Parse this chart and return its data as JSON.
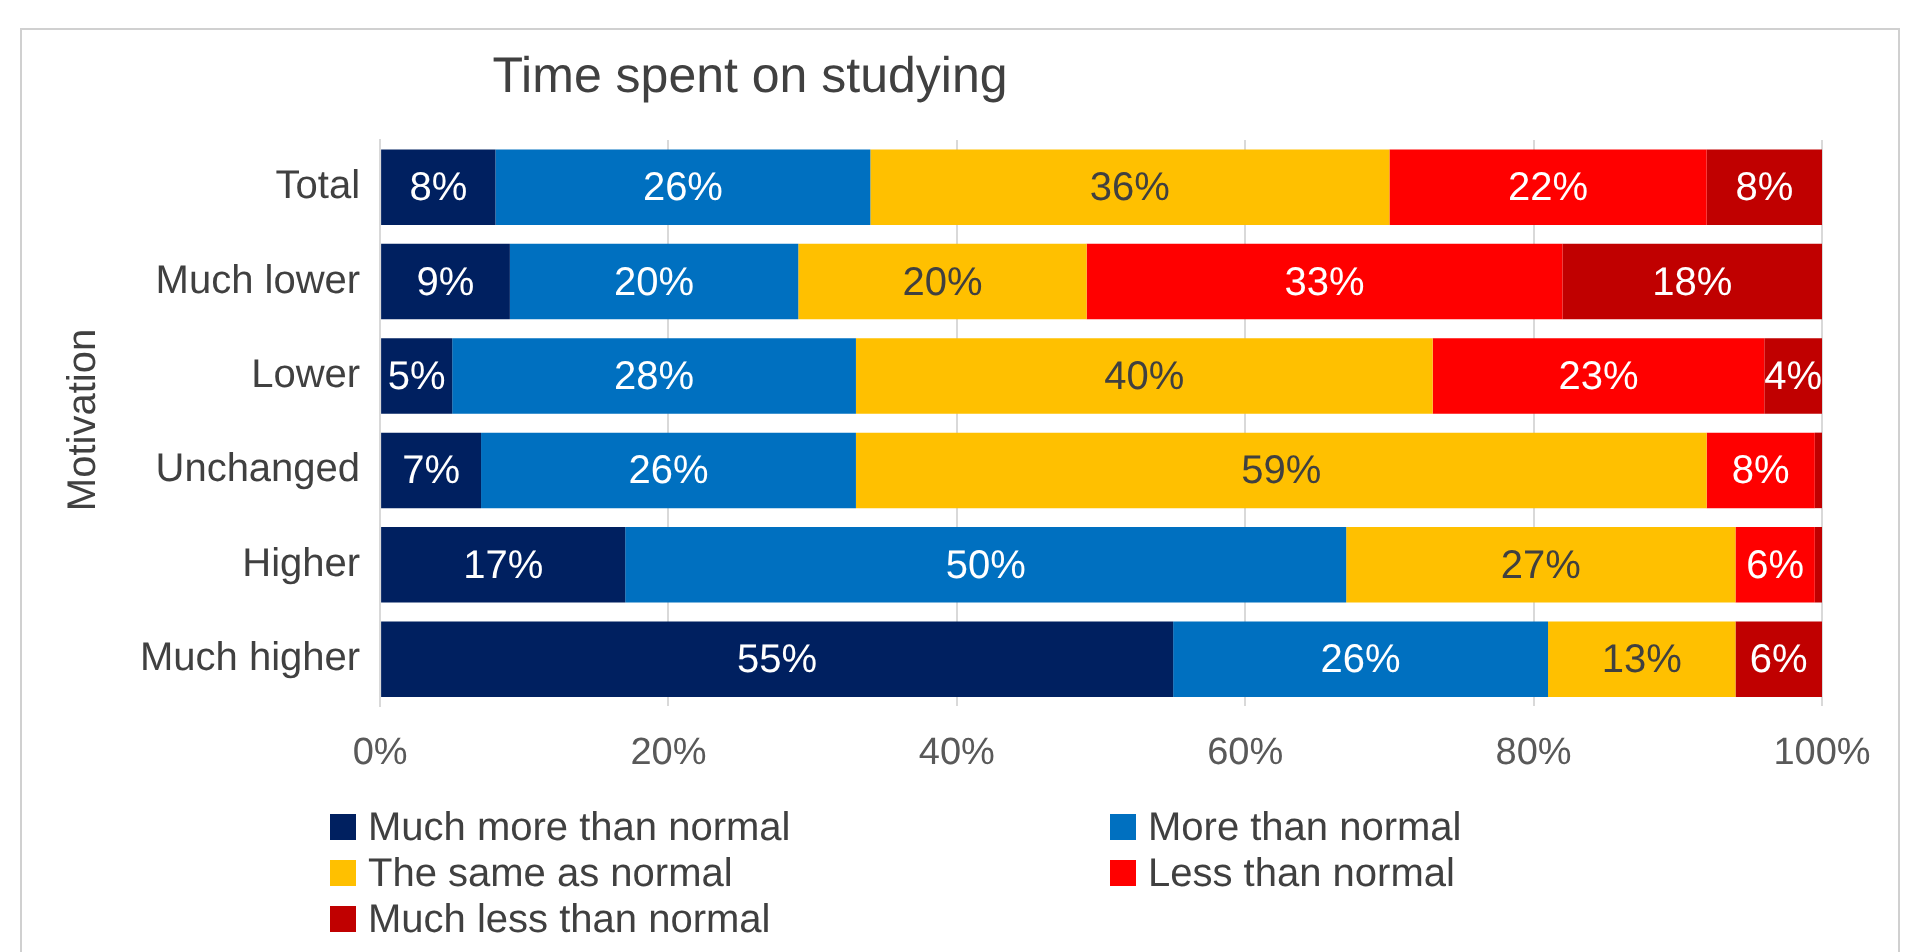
{
  "chart_data": {
    "type": "bar",
    "orientation": "horizontal",
    "stacked": true,
    "title": "Time spent on studying",
    "ylabel": "Motivation",
    "categories": [
      "Total",
      "Much lower",
      "Lower",
      "Unchanged",
      "Higher",
      "Much higher"
    ],
    "series": [
      {
        "name": "Much more than normal",
        "color": "#002060",
        "values": [
          8,
          9,
          5,
          7,
          17,
          55
        ],
        "value_labels": [
          "8%",
          "9%",
          "5%",
          "7%",
          "17%",
          "55%"
        ]
      },
      {
        "name": "More than normal",
        "color": "#0070c0",
        "values": [
          26,
          20,
          28,
          26,
          50,
          26
        ],
        "value_labels": [
          "26%",
          "20%",
          "28%",
          "26%",
          "50%",
          "26%"
        ]
      },
      {
        "name": "The same as normal",
        "color": "#ffc000",
        "values": [
          36,
          20,
          40,
          59,
          27,
          13
        ],
        "value_labels": [
          "36%",
          "20%",
          "40%",
          "59%",
          "27%",
          "13%"
        ]
      },
      {
        "name": "Less than normal",
        "color": "#ff0000",
        "values": [
          22,
          33,
          23,
          7.5,
          5.5,
          null
        ],
        "value_labels": [
          "22%",
          "33%",
          "23%",
          "8%",
          "6%",
          null
        ]
      },
      {
        "name": "Much less than normal",
        "color": "#c00000",
        "values": [
          8,
          18,
          4,
          0.5,
          0.5,
          6
        ],
        "value_labels": [
          "8%",
          "18%",
          "4%",
          null,
          null,
          "6%"
        ]
      }
    ],
    "xlim": [
      0,
      100
    ],
    "xticks": [
      {
        "value": 0,
        "label": "0%"
      },
      {
        "value": 20,
        "label": "20%"
      },
      {
        "value": 40,
        "label": "40%"
      },
      {
        "value": 60,
        "label": "60%"
      },
      {
        "value": 80,
        "label": "80%"
      },
      {
        "value": 100,
        "label": "100%"
      }
    ],
    "grid": "x",
    "legend": "bottom"
  }
}
